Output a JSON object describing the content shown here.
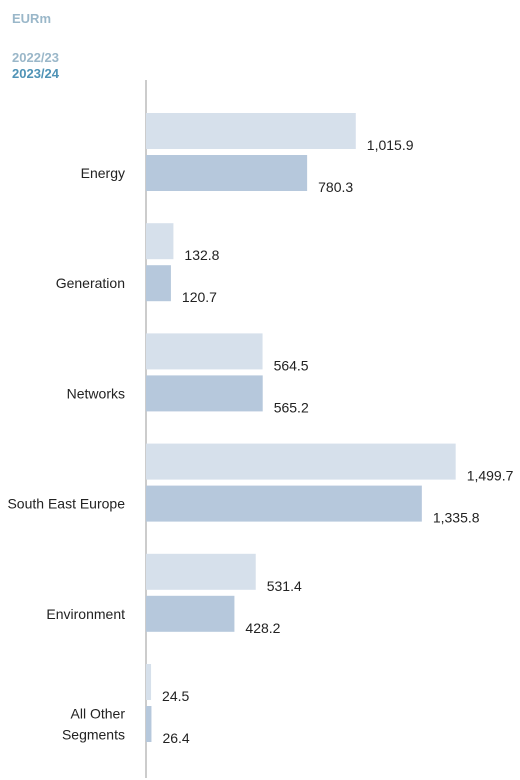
{
  "unit_label": "EURm",
  "legend": {
    "prev": "2022/23",
    "curr": "2023/24"
  },
  "colors": {
    "prev": "#d6e0eb",
    "curr": "#b6c8dc",
    "axis": "#999999",
    "text": "#222222"
  },
  "chart_data": {
    "type": "bar",
    "orientation": "horizontal",
    "unit": "EURm",
    "categories": [
      [
        "Energy"
      ],
      [
        "Generation"
      ],
      [
        "Networks"
      ],
      [
        "South East Europe"
      ],
      [
        "Environment"
      ],
      [
        "All Other",
        "Segments"
      ]
    ],
    "series": [
      {
        "name": "2022/23",
        "values": [
          1015.9,
          132.8,
          564.5,
          1499.7,
          531.4,
          24.5
        ],
        "labels": [
          "1,015.9",
          "132.8",
          "564.5",
          "1,499.7",
          "531.4",
          "24.5"
        ]
      },
      {
        "name": "2023/24",
        "values": [
          780.3,
          120.7,
          565.2,
          1335.8,
          428.2,
          26.4
        ],
        "labels": [
          "780.3",
          "120.7",
          "565.2",
          "1,335.8",
          "428.2",
          "26.4"
        ]
      }
    ]
  }
}
